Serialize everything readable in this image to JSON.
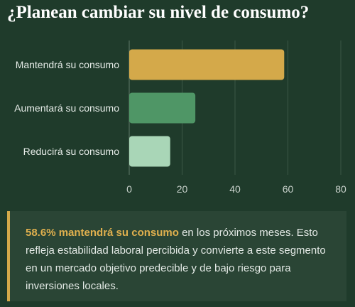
{
  "title": "¿Planean cambiar su nivel de consumo?",
  "chart_data": {
    "type": "bar",
    "orientation": "horizontal",
    "categories": [
      "Mantendrá su consumo",
      "Aumentará su consumo",
      "Reducirá su consumo"
    ],
    "values": [
      58.6,
      25,
      15.5
    ],
    "colors": [
      "#d4a94a",
      "#4f9666",
      "#a9d6b7"
    ],
    "xlim": [
      0,
      80
    ],
    "xticks": [
      "0",
      "20",
      "40",
      "60",
      "80"
    ],
    "grid": true,
    "title": "¿Planean cambiar su nivel de consumo?"
  },
  "insight": {
    "highlight": "58.6% mantendrá su consumo",
    "text": " en los próximos meses. Esto refleja estabilidad laboral percibida y convierte a este segmento en un mercado objetivo predecible y de bajo riesgo para inversiones locales."
  }
}
